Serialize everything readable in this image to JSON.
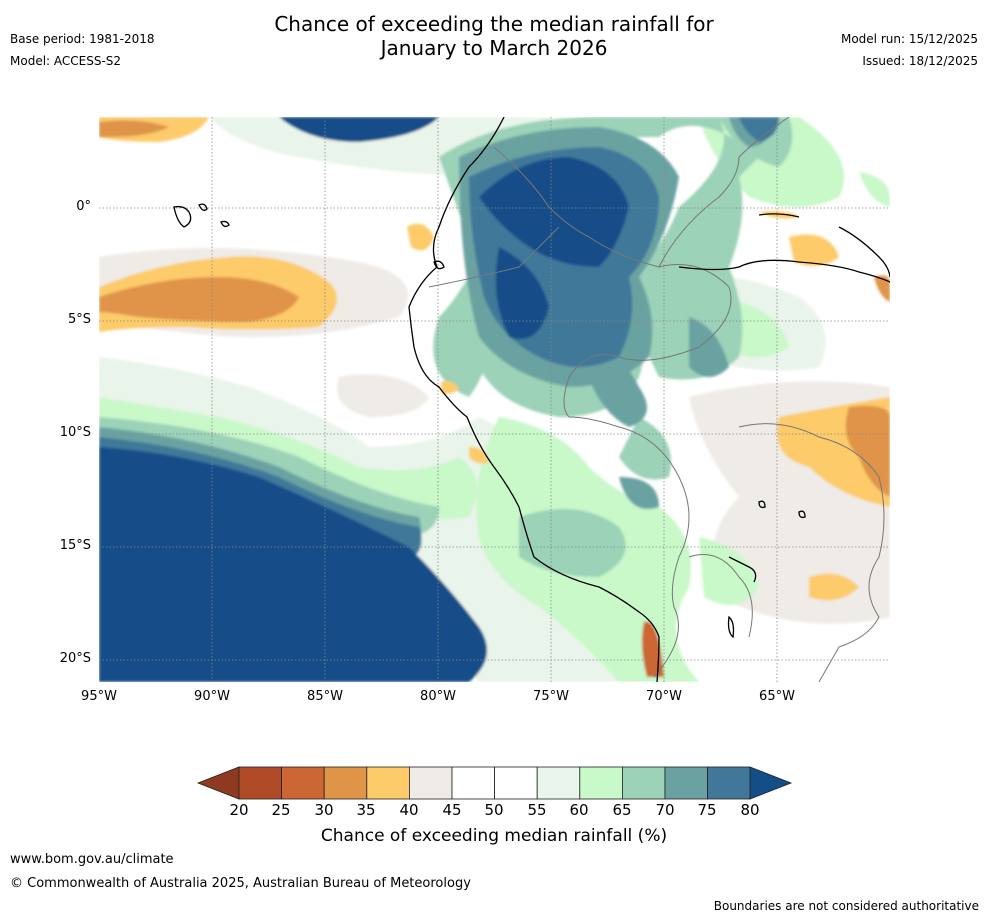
{
  "title_line1": "Chance of exceeding the median rainfall for",
  "title_line2": "January to March 2026",
  "base_period": "Base period: 1981-2018",
  "model": "Model: ACCESS-S2",
  "model_run": "Model run: 15/12/2025",
  "issued": "Issued: 18/12/2025",
  "latitude_labels": [
    "0°",
    "5°S",
    "10°S",
    "15°S",
    "20°S"
  ],
  "longitude_labels": [
    "95°W",
    "90°W",
    "85°W",
    "80°W",
    "75°W",
    "70°W",
    "65°W"
  ],
  "colorbar": {
    "ticks": [
      "20",
      "25",
      "30",
      "35",
      "40",
      "45",
      "50",
      "55",
      "60",
      "65",
      "70",
      "75",
      "80"
    ],
    "colors": [
      "#8e3a20",
      "#b04a27",
      "#cc6633",
      "#e09448",
      "#fdcb6a",
      "#efebe7",
      "#ffffff",
      "#ffffff",
      "#e9f4ea",
      "#c9f8c9",
      "#9bd2b8",
      "#6aa2a2",
      "#41789a",
      "#144e89"
    ],
    "title": "Chance of exceeding median rainfall (%)"
  },
  "footer": {
    "website": "www.bom.gov.au/climate",
    "copyright": "© Commonwealth of Australia 2025, Australian Bureau of Meteorology",
    "disclaimer": "Boundaries are not considered authoritative"
  }
}
